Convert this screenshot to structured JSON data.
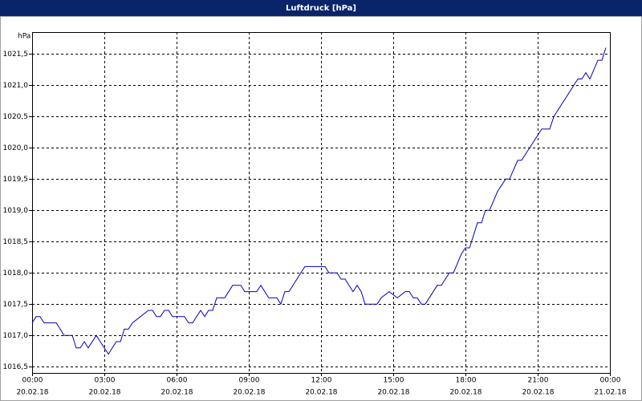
{
  "chart_data": {
    "type": "line",
    "title": "Luftdruck [hPa]",
    "y_label": "hPa",
    "x": [
      0,
      0.17,
      0.33,
      0.5,
      1,
      1.17,
      1.33,
      1.67,
      1.83,
      2,
      2.17,
      2.33,
      2.67,
      2.83,
      3,
      3.17,
      3.33,
      3.5,
      3.67,
      3.83,
      4,
      4.17,
      4.5,
      4.83,
      5,
      5.17,
      5.33,
      5.5,
      5.67,
      5.83,
      6.33,
      6.5,
      6.67,
      6.83,
      7,
      7.17,
      7.33,
      7.5,
      7.67,
      8,
      8.33,
      8.67,
      8.83,
      9.33,
      9.5,
      9.83,
      10.17,
      10.33,
      10.5,
      10.67,
      11.33,
      12.17,
      12.33,
      12.67,
      12.83,
      13,
      13.33,
      13.5,
      13.67,
      13.83,
      14.33,
      14.5,
      14.83,
      15.17,
      15.5,
      15.67,
      15.83,
      16,
      16.17,
      16.33,
      16.83,
      17,
      17.33,
      17.5,
      17.83,
      18,
      18.17,
      18.5,
      18.67,
      18.83,
      19,
      19.33,
      19.67,
      19.83,
      20.17,
      20.33,
      21.17,
      21.5,
      21.67,
      22.67,
      22.83,
      23,
      23.17,
      23.5,
      23.67,
      23.83
    ],
    "series": [
      {
        "name": "Luftdruck",
        "color": "#0000c0",
        "values": [
          1017.2,
          1017.3,
          1017.3,
          1017.2,
          1017.2,
          1017.1,
          1017.0,
          1017.0,
          1016.8,
          1016.8,
          1016.9,
          1016.8,
          1017.0,
          1016.9,
          1016.8,
          1016.7,
          1016.8,
          1016.9,
          1016.9,
          1017.1,
          1017.1,
          1017.2,
          1017.3,
          1017.4,
          1017.4,
          1017.3,
          1017.3,
          1017.4,
          1017.4,
          1017.3,
          1017.3,
          1017.2,
          1017.2,
          1017.3,
          1017.4,
          1017.3,
          1017.4,
          1017.4,
          1017.6,
          1017.6,
          1017.8,
          1017.8,
          1017.7,
          1017.7,
          1017.8,
          1017.6,
          1017.6,
          1017.5,
          1017.7,
          1017.7,
          1018.1,
          1018.1,
          1018.0,
          1018.0,
          1017.9,
          1017.9,
          1017.7,
          1017.8,
          1017.7,
          1017.5,
          1017.5,
          1017.6,
          1017.7,
          1017.6,
          1017.7,
          1017.7,
          1017.6,
          1017.6,
          1017.5,
          1017.5,
          1017.8,
          1017.8,
          1018.0,
          1018.0,
          1018.3,
          1018.4,
          1018.4,
          1018.8,
          1018.8,
          1019.0,
          1019.0,
          1019.3,
          1019.5,
          1019.5,
          1019.8,
          1019.8,
          1020.3,
          1020.3,
          1020.5,
          1021.1,
          1021.1,
          1021.2,
          1021.1,
          1021.4,
          1021.4,
          1021.6
        ]
      }
    ],
    "xlim": [
      0,
      24
    ],
    "xticks": [
      {
        "value": 0,
        "label": "00:00",
        "date": "20.02.18"
      },
      {
        "value": 3,
        "label": "03:00",
        "date": "20.02.18"
      },
      {
        "value": 6,
        "label": "06:00",
        "date": "20.02.18"
      },
      {
        "value": 9,
        "label": "09:00",
        "date": "20.02.18"
      },
      {
        "value": 12,
        "label": "12:00",
        "date": "20.02.18"
      },
      {
        "value": 15,
        "label": "15:00",
        "date": "20.02.18"
      },
      {
        "value": 18,
        "label": "18:00",
        "date": "20.02.18"
      },
      {
        "value": 21,
        "label": "21:00",
        "date": "20.02.18"
      },
      {
        "value": 24,
        "label": "00:00",
        "date": "21.02.18"
      }
    ],
    "ylim": [
      1016.4,
      1021.85
    ],
    "yticks": [
      {
        "value": 1016.5,
        "label": "1016,5"
      },
      {
        "value": 1017,
        "label": "1017,0"
      },
      {
        "value": 1017.5,
        "label": "1017,5"
      },
      {
        "value": 1018,
        "label": "1018,0"
      },
      {
        "value": 1018.5,
        "label": "1018,5"
      },
      {
        "value": 1019,
        "label": "1019,0"
      },
      {
        "value": 1019.5,
        "label": "1019,5"
      },
      {
        "value": 1020,
        "label": "1020,0"
      },
      {
        "value": 1020.5,
        "label": "1020,5"
      },
      {
        "value": 1021,
        "label": "1021,0"
      },
      {
        "value": 1021.5,
        "label": "1021,5"
      }
    ],
    "grid": true
  }
}
